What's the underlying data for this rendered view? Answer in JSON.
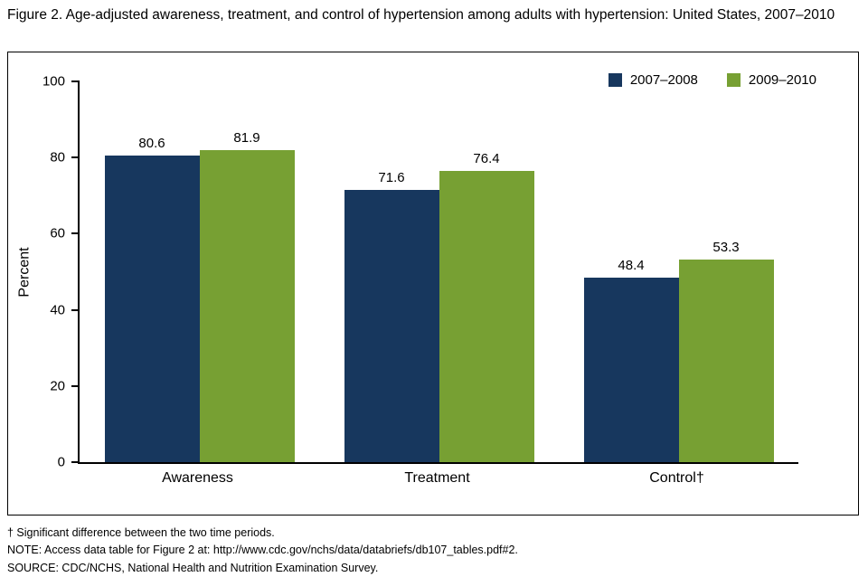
{
  "figure": {
    "title": "Figure 2. Age-adjusted awareness, treatment, and control of hypertension among adults with hypertension: United States, 2007–2010"
  },
  "chart_data": {
    "type": "bar",
    "categories": [
      "Awareness",
      "Treatment",
      "Control†"
    ],
    "series": [
      {
        "name": "2007–2008",
        "color": "#17375E",
        "values": [
          80.6,
          71.6,
          48.4
        ]
      },
      {
        "name": "2009–2010",
        "color": "#77A033",
        "values": [
          81.9,
          76.4,
          53.3
        ]
      }
    ],
    "title": "Age-adjusted awareness, treatment, and control of hypertension among adults with hypertension: United States, 2007–2010",
    "xlabel": "",
    "ylabel": "Percent",
    "ylim": [
      0,
      100
    ],
    "yticks": [
      0,
      20,
      40,
      60,
      80,
      100
    ],
    "grid": false,
    "legend_position": "top-right"
  },
  "footnotes": [
    "† Significant difference between the two time periods.",
    "NOTE: Access data table for Figure 2 at: http://www.cdc.gov/nchs/data/databriefs/db107_tables.pdf#2.",
    "SOURCE: CDC/NCHS, National Health and Nutrition Examination Survey."
  ]
}
